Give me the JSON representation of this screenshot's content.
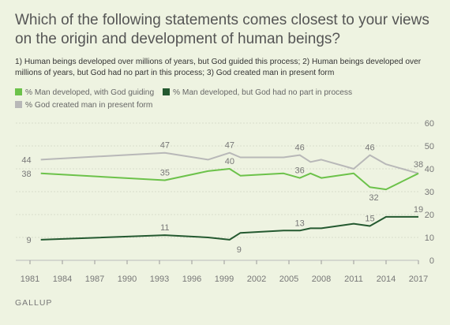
{
  "title": "Which of the following statements comes closest to your views on the origin and development of human beings?",
  "subtitle": "1) Human beings developed over millions of years, but God guided this process; 2) Human beings developed over millions of years, but God had no part in this process; 3) God created man in present form",
  "source": "GALLUP",
  "chart_data": {
    "type": "line",
    "title": "Which of the following statements comes closest to your views on the origin and development of human beings?",
    "xlim": [
      1981,
      2017
    ],
    "ylim": [
      0,
      60
    ],
    "x_ticks": [
      "1981",
      "1984",
      "1987",
      "1990",
      "1993",
      "1996",
      "1999",
      "2002",
      "2005",
      "2008",
      "2011",
      "2014",
      "2017"
    ],
    "y_ticks": [
      "0",
      "10",
      "20",
      "30",
      "40",
      "50",
      "60"
    ],
    "grid": true,
    "legend": "top",
    "series": [
      {
        "name": "% Man developed, with God guiding",
        "color": "#6cc24a",
        "points": [
          [
            1982,
            38
          ],
          [
            1993.5,
            35
          ],
          [
            1997.5,
            39
          ],
          [
            1999.5,
            40
          ],
          [
            2000.5,
            37
          ],
          [
            2004.5,
            38
          ],
          [
            2006,
            36
          ],
          [
            2007,
            38
          ],
          [
            2008,
            36
          ],
          [
            2011,
            38
          ],
          [
            2012.5,
            32
          ],
          [
            2014,
            31
          ],
          [
            2017,
            38
          ]
        ],
        "labels": [
          [
            "1982",
            "38"
          ],
          [
            "1993.5",
            "35"
          ],
          [
            "1999.5",
            "40"
          ],
          [
            "2006",
            "36"
          ],
          [
            "2012.5",
            "32"
          ]
        ]
      },
      {
        "name": "% Man developed, but God had no part in process",
        "color": "#245930",
        "points": [
          [
            1982,
            9
          ],
          [
            1993.5,
            11
          ],
          [
            1997.5,
            10
          ],
          [
            1999.5,
            9
          ],
          [
            2000.5,
            12
          ],
          [
            2004.5,
            13
          ],
          [
            2006,
            13
          ],
          [
            2007,
            14
          ],
          [
            2008,
            14
          ],
          [
            2011,
            16
          ],
          [
            2012.5,
            15
          ],
          [
            2014,
            19
          ],
          [
            2017,
            19
          ]
        ],
        "labels": [
          [
            "1982",
            "9"
          ],
          [
            "1993.5",
            "11"
          ],
          [
            "1999.5",
            "9"
          ],
          [
            "2006",
            "13"
          ],
          [
            "2012.5",
            "15"
          ],
          [
            "2017",
            "19"
          ]
        ]
      },
      {
        "name": "% God created man in present form",
        "color": "#b8b8b8",
        "points": [
          [
            1982,
            44
          ],
          [
            1993.5,
            47
          ],
          [
            1997.5,
            44
          ],
          [
            1999.5,
            47
          ],
          [
            2000.5,
            45
          ],
          [
            2004.5,
            45
          ],
          [
            2006,
            46
          ],
          [
            2007,
            43
          ],
          [
            2008,
            44
          ],
          [
            2011,
            40
          ],
          [
            2012.5,
            46
          ],
          [
            2014,
            42
          ],
          [
            2017,
            38
          ]
        ],
        "labels": [
          [
            "1982",
            "44"
          ],
          [
            "1993.5",
            "47"
          ],
          [
            "1999.5",
            "47"
          ],
          [
            "2006",
            "46"
          ],
          [
            "2012.5",
            "46"
          ],
          [
            "2017",
            "38"
          ]
        ]
      }
    ]
  }
}
